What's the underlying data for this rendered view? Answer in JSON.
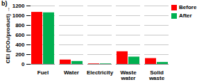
{
  "chart_data": {
    "type": "bar",
    "title": "b)",
    "y_label": "CEI (tCO₂/product)",
    "categories": [
      "Fuel",
      "Water",
      "Electricity",
      "Waste water",
      "Solid waste"
    ],
    "series": [
      {
        "name": "Before",
        "color": "#ff0000",
        "values": [
          1070,
          90,
          10,
          260,
          120
        ]
      },
      {
        "name": "After",
        "color": "#00b050",
        "values": [
          1060,
          60,
          10,
          150,
          40
        ]
      }
    ],
    "ylim": [
      0,
      1200
    ],
    "yticks": [
      0,
      200,
      400,
      600,
      800,
      1000,
      1200
    ],
    "grid": true,
    "legend": "top-right"
  }
}
